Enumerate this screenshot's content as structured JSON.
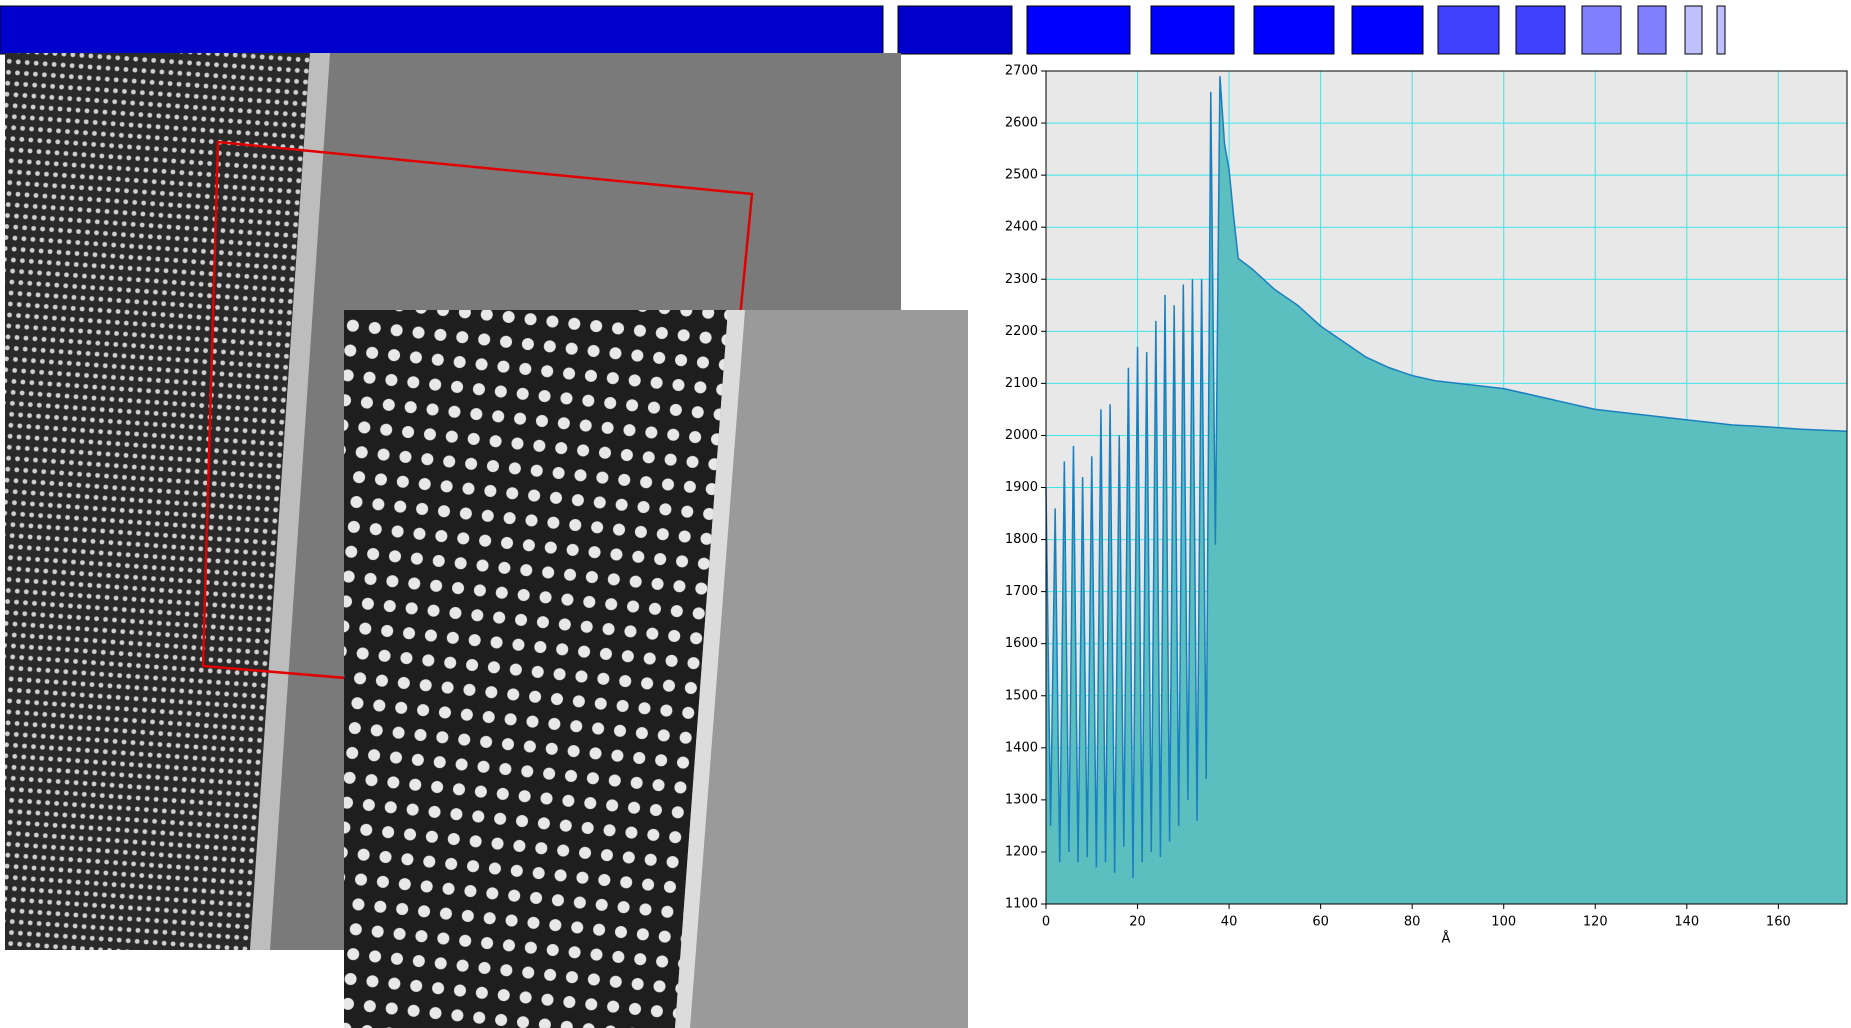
{
  "chart_data": {
    "type": "area",
    "x_label": "Å",
    "x": [
      0,
      1,
      2,
      3,
      4,
      5,
      6,
      7,
      8,
      9,
      10,
      11,
      12,
      13,
      14,
      15,
      16,
      17,
      18,
      19,
      20,
      21,
      22,
      23,
      24,
      25,
      26,
      27,
      28,
      29,
      30,
      31,
      32,
      33,
      34,
      35,
      36,
      37,
      38,
      39,
      40,
      41,
      42,
      45,
      50,
      55,
      60,
      65,
      70,
      75,
      80,
      85,
      90,
      95,
      100,
      105,
      110,
      115,
      120,
      125,
      130,
      135,
      140,
      145,
      150,
      155,
      160,
      165,
      170,
      175
    ],
    "values": [
      1900,
      1250,
      1860,
      1180,
      1950,
      1200,
      1980,
      1180,
      1920,
      1190,
      1960,
      1170,
      2050,
      1180,
      2060,
      1160,
      2000,
      1210,
      2130,
      1150,
      2170,
      1180,
      2160,
      1200,
      2220,
      1190,
      2270,
      1220,
      2250,
      1250,
      2290,
      1300,
      2300,
      1260,
      2300,
      1340,
      2660,
      1790,
      2690,
      2560,
      2510,
      2420,
      2340,
      2320,
      2280,
      2250,
      2210,
      2180,
      2150,
      2130,
      2115,
      2105,
      2100,
      2095,
      2090,
      2080,
      2070,
      2060,
      2050,
      2045,
      2040,
      2035,
      2030,
      2025,
      2020,
      2018,
      2015,
      2012,
      2010,
      2008
    ],
    "color": "#5bbfbf",
    "line_color": "#1a7fc0",
    "grid_color": "#3fe6e6",
    "background": "#e8e8e8",
    "xlim": [
      0,
      175
    ],
    "ylim": [
      1100,
      2700
    ],
    "xticks": [
      0,
      20,
      40,
      60,
      80,
      100,
      120,
      140,
      160
    ],
    "yticks": [
      1100,
      1200,
      1300,
      1400,
      1500,
      1600,
      1700,
      1800,
      1900,
      2000,
      2100,
      2200,
      2300,
      2400,
      2500,
      2600,
      2700
    ],
    "grid": true
  }
}
